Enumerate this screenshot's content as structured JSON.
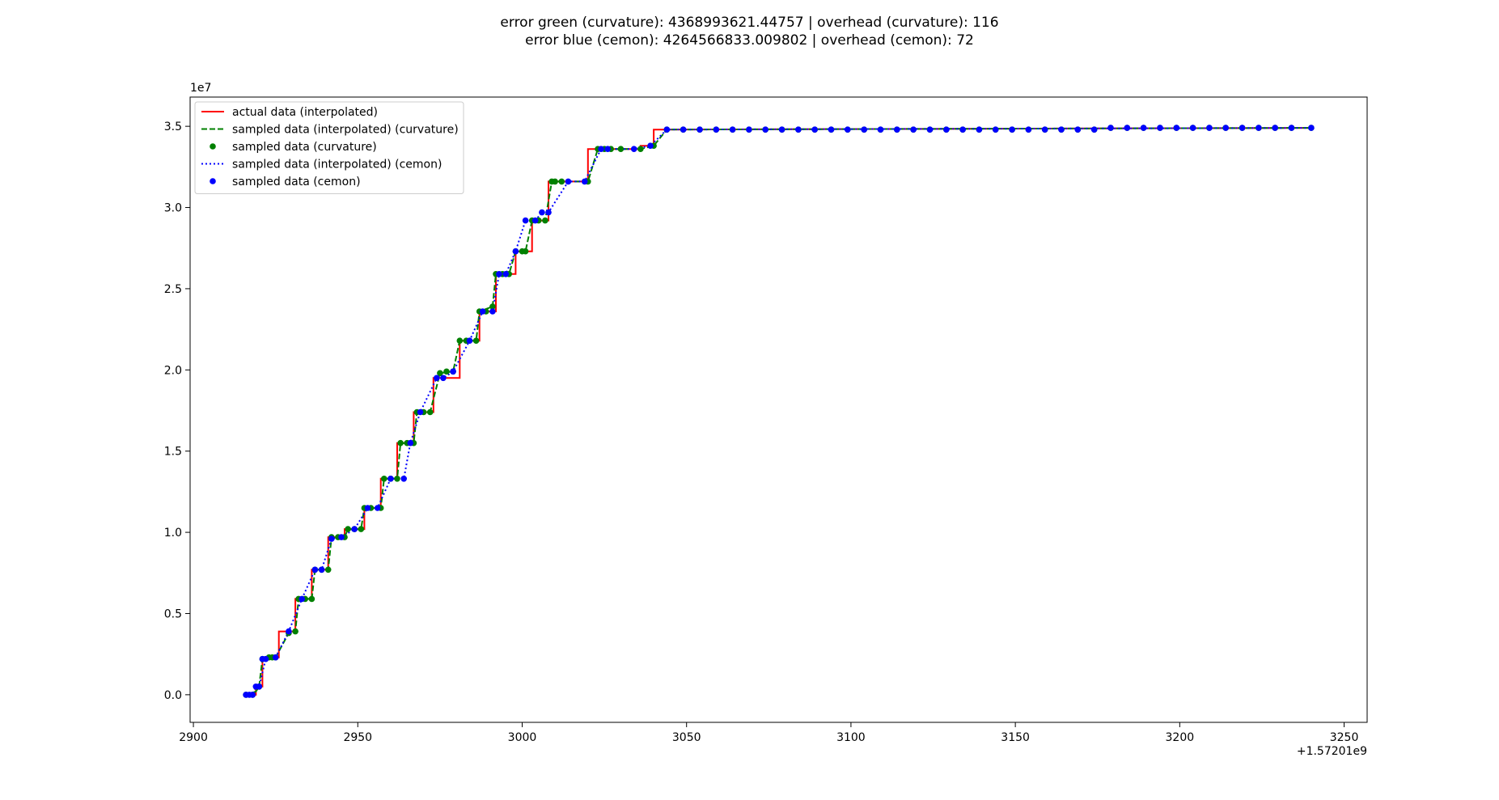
{
  "chart_data": {
    "type": "line",
    "title_lines": [
      "error green (curvature): 4368993621.44757 | overhead (curvature): 116",
      "error blue (cemon): 4264566833.009802 | overhead (cemon): 72"
    ],
    "xlabel": "",
    "ylabel": "",
    "x_offset_label": "+1.57201e9",
    "y_scale_label": "1e7",
    "xlim": [
      2899,
      3257
    ],
    "ylim": [
      -0.17,
      3.68
    ],
    "x_ticks": [
      2900,
      2950,
      3000,
      3050,
      3100,
      3150,
      3200,
      3250
    ],
    "y_ticks": [
      0.0,
      0.5,
      1.0,
      1.5,
      2.0,
      2.5,
      3.0,
      3.5
    ],
    "y_tick_labels": [
      "0.0",
      "0.5",
      "1.0",
      "1.5",
      "2.0",
      "2.5",
      "3.0",
      "3.5"
    ],
    "grid": false,
    "legend_position": "upper-left",
    "series": [
      {
        "name": "actual data (interpolated)",
        "color": "#ff0000",
        "style": "solid",
        "marker": "none",
        "x": [
          2916,
          2919,
          2919,
          2921,
          2921,
          2926,
          2926,
          2931,
          2931,
          2936,
          2936,
          2941,
          2941,
          2946,
          2946,
          2952,
          2952,
          2957,
          2957,
          2962,
          2962,
          2967,
          2967,
          2973,
          2973,
          2981,
          2981,
          2987,
          2987,
          2992,
          2992,
          2998,
          2998,
          3003,
          3003,
          3008,
          3008,
          3020,
          3020,
          3036,
          3036,
          3040,
          3040,
          3240
        ],
        "y": [
          0.0,
          0.0,
          0.05,
          0.05,
          0.23,
          0.23,
          0.39,
          0.39,
          0.59,
          0.59,
          0.77,
          0.77,
          0.97,
          0.97,
          1.02,
          1.02,
          1.15,
          1.15,
          1.33,
          1.33,
          1.55,
          1.55,
          1.74,
          1.74,
          1.95,
          1.95,
          2.18,
          2.18,
          2.36,
          2.36,
          2.59,
          2.59,
          2.73,
          2.73,
          2.92,
          2.92,
          3.16,
          3.16,
          3.36,
          3.36,
          3.38,
          3.38,
          3.48,
          3.49
        ]
      },
      {
        "name": "sampled data (interpolated) (curvature)",
        "color": "#008000",
        "style": "dashed",
        "marker": "none",
        "x": [
          2916,
          2919,
          2920,
          2921,
          2925,
          2929,
          2931,
          2932,
          2936,
          2937,
          2941,
          2942,
          2946,
          2947,
          2951,
          2952,
          2957,
          2958,
          2962,
          2963,
          2967,
          2968,
          2972,
          2975,
          2979,
          2981,
          2986,
          2987,
          2991,
          2992,
          2996,
          2998,
          3001,
          3003,
          3007,
          3009,
          3012,
          3020,
          3023,
          3036,
          3040,
          3044,
          3240
        ],
        "y": [
          0.0,
          0.02,
          0.05,
          0.22,
          0.23,
          0.38,
          0.39,
          0.59,
          0.59,
          0.77,
          0.77,
          0.97,
          0.97,
          1.02,
          1.02,
          1.15,
          1.15,
          1.33,
          1.33,
          1.55,
          1.55,
          1.74,
          1.74,
          1.98,
          1.99,
          2.18,
          2.18,
          2.36,
          2.39,
          2.59,
          2.59,
          2.73,
          2.73,
          2.92,
          2.92,
          3.16,
          3.16,
          3.16,
          3.36,
          3.36,
          3.38,
          3.48,
          3.49
        ]
      },
      {
        "name": "sampled data (curvature)",
        "color": "#008000",
        "style": "none",
        "marker": "dot",
        "x": [
          2916,
          2918,
          2920,
          2921,
          2923,
          2924,
          2925,
          2929,
          2931,
          2932,
          2934,
          2936,
          2937,
          2939,
          2941,
          2942,
          2944,
          2946,
          2947,
          2949,
          2951,
          2952,
          2954,
          2957,
          2958,
          2960,
          2962,
          2963,
          2965,
          2967,
          2968,
          2970,
          2972,
          2975,
          2977,
          2979,
          2981,
          2983,
          2986,
          2987,
          2989,
          2991,
          2992,
          2994,
          2996,
          2998,
          3000,
          3001,
          3003,
          3005,
          3007,
          3009,
          3010,
          3012,
          3020,
          3023,
          3025,
          3027,
          3030,
          3036,
          3040,
          3044,
          3049,
          3054,
          3059,
          3064,
          3069,
          3074,
          3079,
          3084,
          3089,
          3094,
          3099,
          3104,
          3109,
          3114,
          3119,
          3124,
          3129,
          3134,
          3139,
          3144,
          3149,
          3154,
          3159,
          3164,
          3169,
          3174,
          3179,
          3184,
          3189,
          3194,
          3199,
          3204,
          3209,
          3214,
          3219,
          3224,
          3229,
          3234,
          3240
        ],
        "y": [
          0.0,
          0.0,
          0.05,
          0.22,
          0.23,
          0.23,
          0.23,
          0.38,
          0.39,
          0.59,
          0.59,
          0.59,
          0.77,
          0.77,
          0.77,
          0.97,
          0.97,
          0.97,
          1.02,
          1.02,
          1.02,
          1.15,
          1.15,
          1.15,
          1.33,
          1.33,
          1.33,
          1.55,
          1.55,
          1.55,
          1.74,
          1.74,
          1.74,
          1.98,
          1.99,
          1.99,
          2.18,
          2.18,
          2.18,
          2.36,
          2.36,
          2.39,
          2.59,
          2.59,
          2.59,
          2.73,
          2.73,
          2.73,
          2.92,
          2.92,
          2.92,
          3.16,
          3.16,
          3.16,
          3.16,
          3.36,
          3.36,
          3.36,
          3.36,
          3.36,
          3.38,
          3.48,
          3.48,
          3.48,
          3.48,
          3.48,
          3.48,
          3.48,
          3.48,
          3.48,
          3.48,
          3.48,
          3.48,
          3.48,
          3.48,
          3.48,
          3.48,
          3.48,
          3.48,
          3.48,
          3.48,
          3.48,
          3.48,
          3.48,
          3.48,
          3.48,
          3.48,
          3.48,
          3.49,
          3.49,
          3.49,
          3.49,
          3.49,
          3.49,
          3.49,
          3.49,
          3.49,
          3.49,
          3.49,
          3.49,
          3.49
        ]
      },
      {
        "name": "sampled data (interpolated) (cemon)",
        "color": "#0000ff",
        "style": "dotted",
        "marker": "none",
        "x": [
          2916,
          2918,
          2919,
          2920,
          2922,
          2925,
          2929,
          2933,
          2937,
          2939,
          2942,
          2945,
          2949,
          2953,
          2956,
          2960,
          2964,
          2966,
          2969,
          2974,
          2976,
          2979,
          2984,
          2988,
          2991,
          2993,
          2995,
          2998,
          3001,
          3004,
          3006,
          3008,
          3014,
          3019,
          3024,
          3026,
          3034,
          3039,
          3044,
          3240
        ],
        "y": [
          0.0,
          0.0,
          0.05,
          0.05,
          0.22,
          0.23,
          0.39,
          0.59,
          0.77,
          0.77,
          0.96,
          0.97,
          1.02,
          1.15,
          1.15,
          1.33,
          1.33,
          1.55,
          1.74,
          1.95,
          1.95,
          1.99,
          2.18,
          2.36,
          2.36,
          2.59,
          2.59,
          2.73,
          2.92,
          2.92,
          2.97,
          2.97,
          3.16,
          3.16,
          3.36,
          3.36,
          3.36,
          3.38,
          3.48,
          3.49
        ]
      },
      {
        "name": "sampled data (cemon)",
        "color": "#0000ff",
        "style": "none",
        "marker": "dot",
        "x": [
          2916,
          2917,
          2918,
          2919,
          2920,
          2921,
          2922,
          2925,
          2929,
          2933,
          2937,
          2939,
          2942,
          2945,
          2949,
          2953,
          2956,
          2960,
          2964,
          2966,
          2969,
          2974,
          2976,
          2979,
          2984,
          2988,
          2991,
          2993,
          2995,
          2998,
          3001,
          3004,
          3006,
          3008,
          3014,
          3019,
          3024,
          3026,
          3034,
          3039,
          3044,
          3049,
          3054,
          3059,
          3064,
          3069,
          3074,
          3079,
          3084,
          3089,
          3094,
          3099,
          3104,
          3109,
          3114,
          3119,
          3124,
          3129,
          3134,
          3139,
          3144,
          3149,
          3154,
          3159,
          3164,
          3169,
          3174,
          3179,
          3184,
          3189,
          3194,
          3199,
          3204,
          3209,
          3214,
          3219,
          3224,
          3229,
          3234,
          3240
        ],
        "y": [
          0.0,
          0.0,
          0.0,
          0.05,
          0.05,
          0.22,
          0.22,
          0.23,
          0.39,
          0.59,
          0.77,
          0.77,
          0.96,
          0.97,
          1.02,
          1.15,
          1.15,
          1.33,
          1.33,
          1.55,
          1.74,
          1.95,
          1.95,
          1.99,
          2.18,
          2.36,
          2.36,
          2.59,
          2.59,
          2.73,
          2.92,
          2.92,
          2.97,
          2.97,
          3.16,
          3.16,
          3.36,
          3.36,
          3.36,
          3.38,
          3.48,
          3.48,
          3.48,
          3.48,
          3.48,
          3.48,
          3.48,
          3.48,
          3.48,
          3.48,
          3.48,
          3.48,
          3.48,
          3.48,
          3.48,
          3.48,
          3.48,
          3.48,
          3.48,
          3.48,
          3.48,
          3.48,
          3.48,
          3.48,
          3.48,
          3.48,
          3.48,
          3.49,
          3.49,
          3.49,
          3.49,
          3.49,
          3.49,
          3.49,
          3.49,
          3.49,
          3.49,
          3.49,
          3.49,
          3.49
        ]
      }
    ]
  }
}
